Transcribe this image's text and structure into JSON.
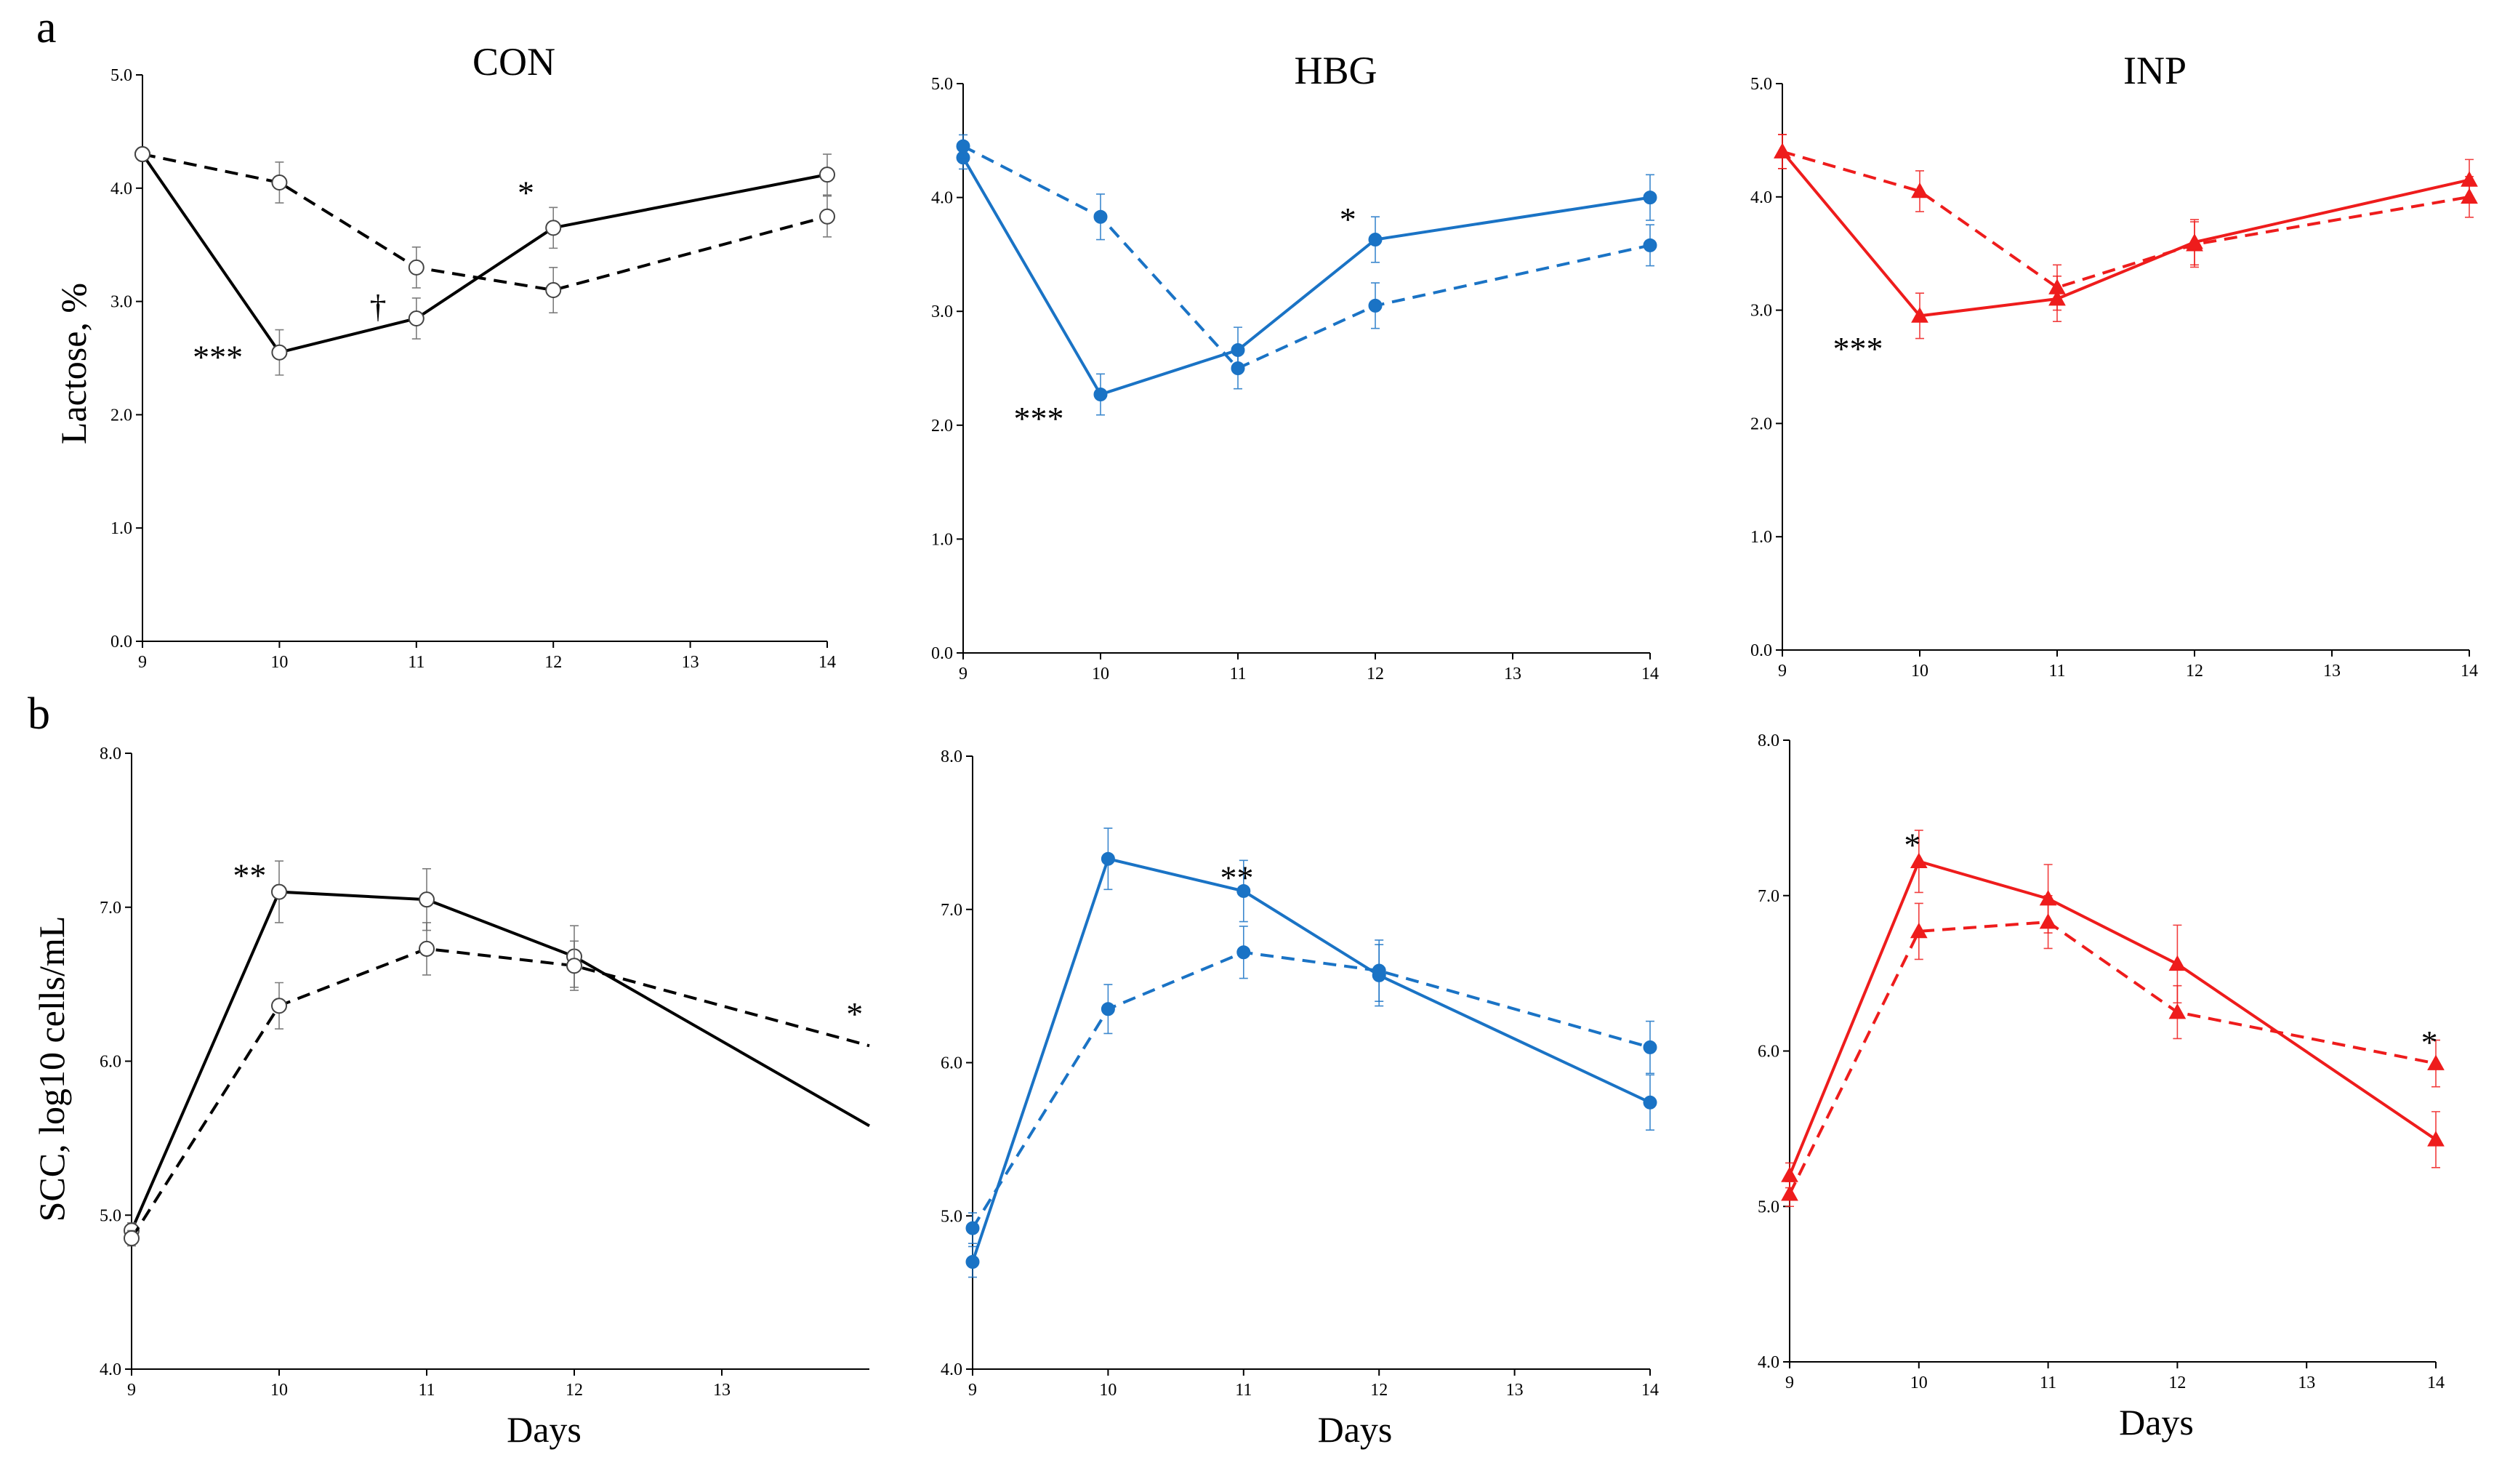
{
  "figure": {
    "row_labels": [
      "a",
      "b"
    ],
    "x_axis_label": "Days",
    "y_axis_label_a": "Lactose, %",
    "y_axis_label_b": "SCC, log10 cells/mL"
  },
  "chart_data": [
    {
      "id": "a-con",
      "type": "line",
      "row": "a",
      "title": "CON",
      "color": "#000000",
      "marker": "open-circle",
      "xlabel": "",
      "ylabel": "Lactose, %",
      "xlim": [
        9,
        14
      ],
      "ylim": [
        0,
        5
      ],
      "xticks": [
        9,
        10,
        11,
        12,
        13,
        14
      ],
      "yticks": [
        0,
        1,
        2,
        3,
        4,
        5
      ],
      "ytick_labels": [
        "0.0",
        "1.0",
        "2.0",
        "3.0",
        "4.0",
        "5.0"
      ],
      "series": [
        {
          "name": "solid",
          "style": "solid",
          "x": [
            9,
            10,
            11,
            12,
            14
          ],
          "values": [
            4.3,
            2.55,
            2.85,
            3.65,
            4.12
          ],
          "err": [
            0.05,
            0.2,
            0.18,
            0.18,
            0.18
          ]
        },
        {
          "name": "dashed",
          "style": "dashed",
          "x": [
            9,
            10,
            11,
            12,
            14
          ],
          "values": [
            4.3,
            4.05,
            3.3,
            3.1,
            3.75
          ],
          "err": [
            0.05,
            0.18,
            0.18,
            0.2,
            0.18
          ]
        }
      ],
      "annotations": [
        {
          "text": "***",
          "x": 9.55,
          "y": 2.5
        },
        {
          "text": "†",
          "x": 10.72,
          "y": 2.95
        },
        {
          "text": "*",
          "x": 11.8,
          "y": 3.95
        }
      ]
    },
    {
      "id": "a-hbg",
      "type": "line",
      "row": "a",
      "title": "HBG",
      "color": "#1a73c5",
      "marker": "filled-circle",
      "xlabel": "",
      "ylabel": "",
      "xlim": [
        9,
        14
      ],
      "ylim": [
        0,
        5
      ],
      "xticks": [
        9,
        10,
        11,
        12,
        13,
        14
      ],
      "yticks": [
        0,
        1,
        2,
        3,
        4,
        5
      ],
      "ytick_labels": [
        "0.0",
        "1.0",
        "2.0",
        "3.0",
        "4.0",
        "5.0"
      ],
      "series": [
        {
          "name": "solid",
          "style": "solid",
          "x": [
            9,
            10,
            11,
            12,
            14
          ],
          "values": [
            4.35,
            2.27,
            2.66,
            3.63,
            4.0
          ],
          "err": [
            0.1,
            0.18,
            0.2,
            0.2,
            0.2
          ]
        },
        {
          "name": "dashed",
          "style": "dashed",
          "x": [
            9,
            10,
            11,
            12,
            14
          ],
          "values": [
            4.45,
            3.83,
            2.5,
            3.05,
            3.58
          ],
          "err": [
            0.1,
            0.2,
            0.18,
            0.2,
            0.18
          ]
        }
      ],
      "annotations": [
        {
          "text": "***",
          "x": 9.55,
          "y": 2.05
        },
        {
          "text": "*",
          "x": 11.8,
          "y": 3.8
        }
      ]
    },
    {
      "id": "a-inp",
      "type": "line",
      "row": "a",
      "title": "INP",
      "color": "#ee1c1c",
      "marker": "filled-triangle",
      "xlabel": "",
      "ylabel": "",
      "xlim": [
        9,
        14
      ],
      "ylim": [
        0,
        5
      ],
      "xticks": [
        9,
        10,
        11,
        12,
        13,
        14
      ],
      "yticks": [
        0,
        1,
        2,
        3,
        4,
        5
      ],
      "ytick_labels": [
        "0.0",
        "1.0",
        "2.0",
        "3.0",
        "4.0",
        "5.0"
      ],
      "series": [
        {
          "name": "solid",
          "style": "solid",
          "x": [
            9,
            10,
            11,
            12,
            14
          ],
          "values": [
            4.4,
            2.95,
            3.1,
            3.6,
            4.15
          ],
          "err": [
            0.15,
            0.2,
            0.2,
            0.2,
            0.18
          ]
        },
        {
          "name": "dashed",
          "style": "dashed",
          "x": [
            9,
            10,
            11,
            12,
            14
          ],
          "values": [
            4.4,
            4.05,
            3.2,
            3.58,
            4.0
          ],
          "err": [
            0.15,
            0.18,
            0.2,
            0.2,
            0.18
          ]
        }
      ],
      "annotations": [
        {
          "text": "***",
          "x": 9.55,
          "y": 2.65
        }
      ]
    },
    {
      "id": "b-con",
      "type": "line",
      "row": "b",
      "title": "",
      "color": "#000000",
      "marker": "open-circle",
      "xlabel": "Days",
      "ylabel": "SCC, log10 cells/mL",
      "xlim": [
        9,
        14
      ],
      "ylim": [
        4,
        8
      ],
      "xticks": [
        9,
        10,
        11,
        12,
        13
      ],
      "yticks": [
        4,
        5,
        6,
        7,
        8
      ],
      "ytick_labels": [
        "4.0",
        "5.0",
        "6.0",
        "7.0",
        "8.0"
      ],
      "series": [
        {
          "name": "solid",
          "style": "solid",
          "x": [
            9,
            10,
            11,
            12,
            14
          ],
          "values": [
            4.9,
            7.1,
            7.05,
            6.68,
            5.58
          ],
          "markers": [
            true,
            true,
            true,
            true,
            false
          ],
          "err": [
            0.05,
            0.2,
            0.2,
            0.2,
            0
          ]
        },
        {
          "name": "dashed",
          "style": "dashed",
          "x": [
            9,
            10,
            11,
            12,
            14
          ],
          "values": [
            4.85,
            6.36,
            6.73,
            6.62,
            6.1
          ],
          "markers": [
            true,
            true,
            true,
            true,
            false
          ],
          "err": [
            0.05,
            0.15,
            0.17,
            0.16,
            0
          ]
        }
      ],
      "annotations": [
        {
          "text": "**",
          "x": 9.8,
          "y": 7.2
        },
        {
          "text": "*",
          "x": 13.9,
          "y": 6.3
        }
      ]
    },
    {
      "id": "b-hbg",
      "type": "line",
      "row": "b",
      "title": "",
      "color": "#1a73c5",
      "marker": "filled-circle",
      "xlabel": "Days",
      "ylabel": "",
      "xlim": [
        9,
        14
      ],
      "ylim": [
        4,
        8
      ],
      "xticks": [
        9,
        10,
        11,
        12,
        13,
        14
      ],
      "yticks": [
        4,
        5,
        6,
        7,
        8
      ],
      "ytick_labels": [
        "4.0",
        "5.0",
        "6.0",
        "7.0",
        "8.0"
      ],
      "series": [
        {
          "name": "solid",
          "style": "solid",
          "x": [
            9,
            10,
            11,
            12,
            14
          ],
          "values": [
            4.7,
            7.33,
            7.12,
            6.57,
            5.74
          ],
          "err": [
            0.1,
            0.2,
            0.2,
            0.2,
            0.18
          ]
        },
        {
          "name": "dashed",
          "style": "dashed",
          "x": [
            9,
            10,
            11,
            12,
            14
          ],
          "values": [
            4.92,
            6.35,
            6.72,
            6.6,
            6.1
          ],
          "err": [
            0.1,
            0.16,
            0.17,
            0.2,
            0.17
          ]
        }
      ],
      "annotations": [
        {
          "text": "**",
          "x": 10.95,
          "y": 7.2
        }
      ]
    },
    {
      "id": "b-inp",
      "type": "line",
      "row": "b",
      "title": "",
      "color": "#ee1c1c",
      "marker": "filled-triangle",
      "xlabel": "Days",
      "ylabel": "",
      "xlim": [
        9,
        14
      ],
      "ylim": [
        4,
        8
      ],
      "xticks": [
        9,
        10,
        11,
        12,
        13,
        14
      ],
      "yticks": [
        4,
        5,
        6,
        7,
        8
      ],
      "ytick_labels": [
        "4.0",
        "5.0",
        "6.0",
        "7.0",
        "8.0"
      ],
      "series": [
        {
          "name": "solid",
          "style": "solid",
          "x": [
            9,
            10,
            11,
            12,
            14
          ],
          "values": [
            5.2,
            7.22,
            6.98,
            6.56,
            5.43
          ],
          "err": [
            0.08,
            0.2,
            0.22,
            0.25,
            0.18
          ]
        },
        {
          "name": "dashed",
          "style": "dashed",
          "x": [
            9,
            10,
            11,
            12,
            14
          ],
          "values": [
            5.08,
            6.77,
            6.83,
            6.25,
            5.92
          ],
          "err": [
            0.08,
            0.18,
            0.17,
            0.17,
            0.15
          ]
        }
      ],
      "annotations": [
        {
          "text": "*",
          "x": 9.95,
          "y": 7.32
        },
        {
          "text": "*",
          "x": 13.95,
          "y": 6.05
        }
      ]
    }
  ]
}
